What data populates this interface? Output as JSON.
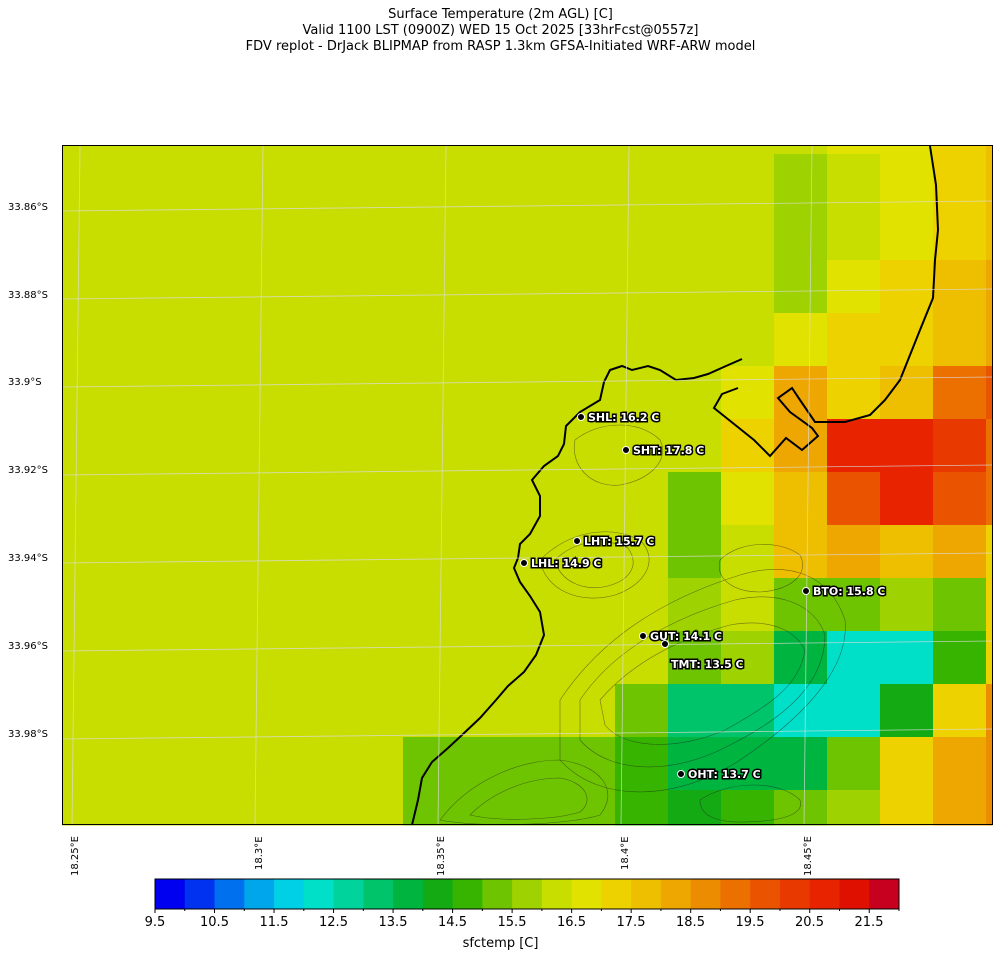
{
  "title": {
    "line1": "Surface Temperature (2m AGL) [C]",
    "line2": "Valid 1100 LST (0900Z) WED 15 Oct 2025 [33hrFcst@0557z]",
    "line3": "FDV replot - DrJack BLIPMAP from RASP 1.3km GFSA-Initiated WRF-ARW model"
  },
  "lat_ticks": [
    "33.86°S",
    "33.88°S",
    "33.9°S",
    "33.92°S",
    "33.94°S",
    "33.96°S",
    "33.98°S"
  ],
  "lon_ticks": [
    "18.25°E",
    "18.3°E",
    "18.35°E",
    "18.4°E",
    "18.45°E"
  ],
  "stations": [
    {
      "id": "SHL",
      "label": "SHL: 16.2 C"
    },
    {
      "id": "SHT",
      "label": "SHT: 17.8 C"
    },
    {
      "id": "LHT",
      "label": "LHT: 15.7 C"
    },
    {
      "id": "LHL",
      "label": "LHL: 14.9 C"
    },
    {
      "id": "BTO",
      "label": "BTO: 15.8 C"
    },
    {
      "id": "GUT",
      "label": "GUT: 14.1 C"
    },
    {
      "id": "TMT",
      "label": "TMT: 13.5 C"
    },
    {
      "id": "OHT",
      "label": "OHT: 13.7 C"
    }
  ],
  "colorbar": {
    "label": "sfctemp [C]",
    "ticks": [
      "9.5",
      "10.5",
      "11.5",
      "12.5",
      "13.5",
      "14.5",
      "15.5",
      "16.5",
      "17.5",
      "18.5",
      "19.5",
      "20.5",
      "21.5"
    ],
    "colors": [
      "#0000f0",
      "#0032f0",
      "#0070ef",
      "#00a6ec",
      "#00d0e6",
      "#00e0c8",
      "#00d49c",
      "#00c46a",
      "#00b440",
      "#14aa14",
      "#36b400",
      "#6ec400",
      "#9ed200",
      "#c8de00",
      "#e2e200",
      "#eed200",
      "#eebe00",
      "#eea600",
      "#ec8c00",
      "#ec7000",
      "#ea5400",
      "#e83a00",
      "#e82400",
      "#e01000",
      "#c80020"
    ],
    "min": 9.5,
    "max": 22
  },
  "grid": {
    "row0": [
      13,
      13,
      13,
      13,
      13,
      13,
      13,
      13,
      13,
      13,
      13,
      13,
      14,
      14,
      15,
      16,
      17,
      19
    ],
    "row1": [
      13,
      13,
      13,
      13,
      13,
      13,
      13,
      13,
      13,
      13,
      13,
      12,
      13,
      14,
      15,
      16,
      17,
      20
    ],
    "row2": [
      13,
      13,
      13,
      13,
      13,
      13,
      13,
      13,
      13,
      13,
      13,
      12,
      13,
      14,
      15,
      16,
      17,
      20
    ],
    "row3": [
      13,
      13,
      13,
      13,
      13,
      13,
      13,
      13,
      13,
      13,
      13,
      12,
      14,
      15,
      16,
      17,
      22,
      16
    ],
    "row4": [
      13,
      13,
      13,
      13,
      13,
      13,
      13,
      13,
      13,
      13,
      13,
      14,
      15,
      15,
      16,
      17,
      20,
      18
    ],
    "row5": [
      13,
      13,
      13,
      13,
      13,
      13,
      13,
      13,
      13,
      13,
      14,
      17,
      15,
      16,
      19,
      20,
      19,
      18
    ],
    "row6": [
      13,
      13,
      13,
      13,
      13,
      13,
      13,
      13,
      13,
      13,
      15,
      17,
      22,
      22,
      21,
      19,
      19,
      18
    ],
    "row7": [
      13,
      13,
      13,
      13,
      13,
      13,
      13,
      13,
      13,
      11,
      14,
      16,
      20,
      22,
      20,
      19,
      19,
      18
    ],
    "row8": [
      13,
      13,
      13,
      13,
      13,
      13,
      13,
      13,
      13,
      11,
      13,
      16,
      17,
      16,
      17,
      15,
      18,
      19
    ],
    "row9": [
      13,
      13,
      13,
      13,
      13,
      13,
      13,
      13,
      13,
      12,
      13,
      11,
      11,
      12,
      11,
      15,
      17,
      20
    ],
    "row10": [
      13,
      13,
      13,
      13,
      13,
      13,
      13,
      13,
      13,
      11,
      12,
      8,
      5,
      5,
      10,
      15,
      18,
      20
    ],
    "row11": [
      13,
      13,
      13,
      13,
      13,
      13,
      13,
      13,
      11,
      7,
      7,
      5,
      5,
      9,
      15,
      18,
      19,
      20
    ],
    "row12": [
      13,
      13,
      13,
      13,
      11,
      11,
      11,
      11,
      10,
      8,
      8,
      8,
      11,
      15,
      17,
      18,
      19,
      20
    ],
    "row13": [
      13,
      13,
      13,
      13,
      11,
      11,
      11,
      11,
      10,
      9,
      10,
      11,
      12,
      15,
      17,
      18,
      19,
      20
    ]
  }
}
